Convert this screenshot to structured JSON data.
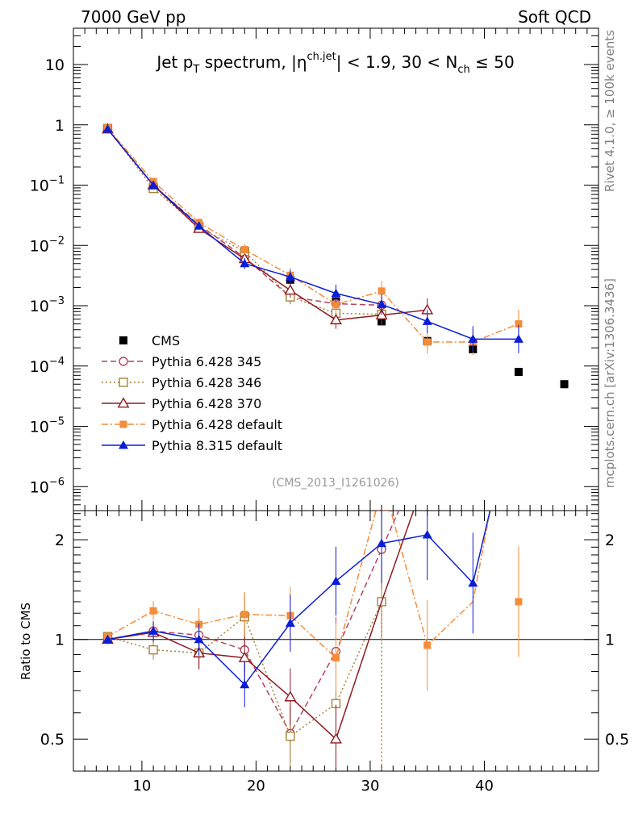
{
  "header": {
    "left": "7000 GeV pp",
    "right": "Soft QCD"
  },
  "side_labels": {
    "rivet": "Rivet 4.1.0, ≥ 100k events",
    "mcplots": "mcplots.cern.ch [arXiv:1306.3436]"
  },
  "title": {
    "p1": "Jet p",
    "p1_sub": "T",
    "p2": " spectrum, |η",
    "p2_sup": "ch.jet",
    "p3": "| < 1.9, 30 < N",
    "p3_sub": "ch",
    "p4": " ≤ 50"
  },
  "watermark": "(CMS_2013_I1261026)",
  "ratio_ylabel": "Ratio to CMS",
  "colors": {
    "cms": "#000000",
    "p345": "#b5435a",
    "p346": "#a48438",
    "p370": "#8e1a21",
    "pdef": "#f58c3a",
    "p8": "#0a1ed8"
  },
  "chart_data": {
    "type": "scatter",
    "xlim": [
      4,
      50
    ],
    "x_ticks": [
      10,
      20,
      30,
      40
    ],
    "main": {
      "yscale": "log",
      "ylim": [
        4e-07,
        40
      ],
      "y_ticks": [
        {
          "v": 10,
          "b": "10",
          "e": ""
        },
        {
          "v": 1,
          "b": "1",
          "e": ""
        },
        {
          "v": 0.1,
          "b": "10",
          "e": "−1"
        },
        {
          "v": 0.01,
          "b": "10",
          "e": "−2"
        },
        {
          "v": 0.001,
          "b": "10",
          "e": "−3"
        },
        {
          "v": 0.0001,
          "b": "10",
          "e": "−4"
        },
        {
          "v": 1e-05,
          "b": "10",
          "e": "−5"
        },
        {
          "v": 1e-06,
          "b": "10",
          "e": "−6"
        }
      ]
    },
    "ratio": {
      "yscale": "log",
      "ylim": [
        0.4,
        2.45
      ],
      "y_ticks": [
        {
          "v": 0.5,
          "label": "0.5"
        },
        {
          "v": 1,
          "label": "1"
        },
        {
          "v": 2,
          "label": "2"
        }
      ]
    },
    "cms": {
      "name": "CMS",
      "x": [
        7,
        11,
        15,
        19,
        23,
        27,
        31,
        35,
        39,
        43,
        47
      ],
      "y": [
        0.85,
        0.095,
        0.021,
        0.0068,
        0.0027,
        0.00118,
        0.00055,
        0.00026,
        0.00019,
        8e-05,
        5e-05
      ]
    },
    "series": [
      {
        "name": "Pythia 6.428 345",
        "color_key": "p345",
        "marker": "circle-open",
        "dash": "7,4",
        "x": [
          7,
          11,
          15,
          19,
          23,
          27,
          31
        ],
        "y": [
          0.86,
          0.1,
          0.022,
          0.0063,
          0.0014,
          0.00108,
          0.00102
        ],
        "ratio": [
          1.0,
          1.06,
          1.03,
          0.93,
          0.52,
          0.92,
          1.87
        ],
        "ratio_x": [
          7,
          11,
          15,
          19,
          23,
          27,
          31,
          32.5
        ],
        "ratio_line": [
          1.0,
          1.06,
          1.03,
          0.93,
          0.52,
          0.92,
          1.87,
          2.45
        ]
      },
      {
        "name": "Pythia 6.428 346",
        "color_key": "p346",
        "marker": "square-open",
        "dash": "2,3",
        "x": [
          7,
          11,
          15,
          19,
          23,
          27,
          31
        ],
        "y": [
          0.87,
          0.088,
          0.02,
          0.0079,
          0.0014,
          0.00075,
          0.00072
        ],
        "ratio": [
          1.02,
          0.93,
          0.91,
          1.17,
          0.51,
          0.64,
          1.3
        ],
        "ratio_x": [
          7,
          11,
          15,
          19,
          23,
          27,
          31,
          31
        ],
        "ratio_line": [
          1.02,
          0.93,
          0.91,
          1.17,
          0.51,
          0.64,
          1.3,
          0.4
        ]
      },
      {
        "name": "Pythia 6.428 370",
        "color_key": "p370",
        "marker": "triangle-open",
        "dash": "",
        "x": [
          7,
          11,
          15,
          19,
          23,
          27,
          31,
          35
        ],
        "y": [
          0.85,
          0.1,
          0.019,
          0.006,
          0.0018,
          0.00058,
          0.0007,
          0.00085
        ],
        "ratio": [
          1.0,
          1.05,
          0.91,
          0.88,
          0.67,
          0.5
        ],
        "ratio_x": [
          7,
          11,
          15,
          19,
          23,
          27,
          31,
          33.8
        ],
        "ratio_line": [
          1.0,
          1.05,
          0.91,
          0.88,
          0.67,
          0.5,
          1.3,
          2.45
        ]
      },
      {
        "name": "Pythia 6.428 default",
        "color_key": "pdef",
        "marker": "square-filled",
        "dash": "8,3,2,3",
        "x": [
          7,
          11,
          15,
          19,
          23,
          27,
          31,
          35,
          39,
          43
        ],
        "y": [
          0.88,
          0.115,
          0.024,
          0.0085,
          0.0032,
          0.00105,
          0.00175,
          0.00025,
          0.00025,
          0.0005
        ],
        "ratio": [
          1.02,
          1.22,
          1.11,
          1.19,
          1.18,
          0.88,
          null,
          0.96,
          null,
          1.3
        ],
        "ratio_x": [
          7,
          11,
          15,
          19,
          23,
          27,
          30.5,
          31,
          31.8,
          35,
          39,
          40.5
        ],
        "ratio_line": [
          1.02,
          1.22,
          1.11,
          1.19,
          1.18,
          0.88,
          2.45,
          2.45,
          2.45,
          0.96,
          1.3,
          2.45
        ]
      },
      {
        "name": "Pythia 8.315 default",
        "color_key": "p8",
        "marker": "triangle-filled",
        "dash": "",
        "x": [
          7,
          11,
          15,
          19,
          23,
          27,
          31,
          35,
          39,
          43
        ],
        "y": [
          0.85,
          0.1,
          0.021,
          0.005,
          0.003,
          0.0016,
          0.00105,
          0.00055,
          0.00028,
          0.00028
        ],
        "ratio": [
          1.0,
          1.06,
          1.0,
          0.73,
          1.12,
          1.5,
          1.95,
          2.07,
          1.48
        ],
        "ratio_x": [
          7,
          11,
          15,
          19,
          23,
          27,
          31,
          35,
          39,
          40.5
        ],
        "ratio_line": [
          1.0,
          1.06,
          1.0,
          0.73,
          1.12,
          1.5,
          1.95,
          2.07,
          1.48,
          2.45
        ]
      }
    ]
  }
}
